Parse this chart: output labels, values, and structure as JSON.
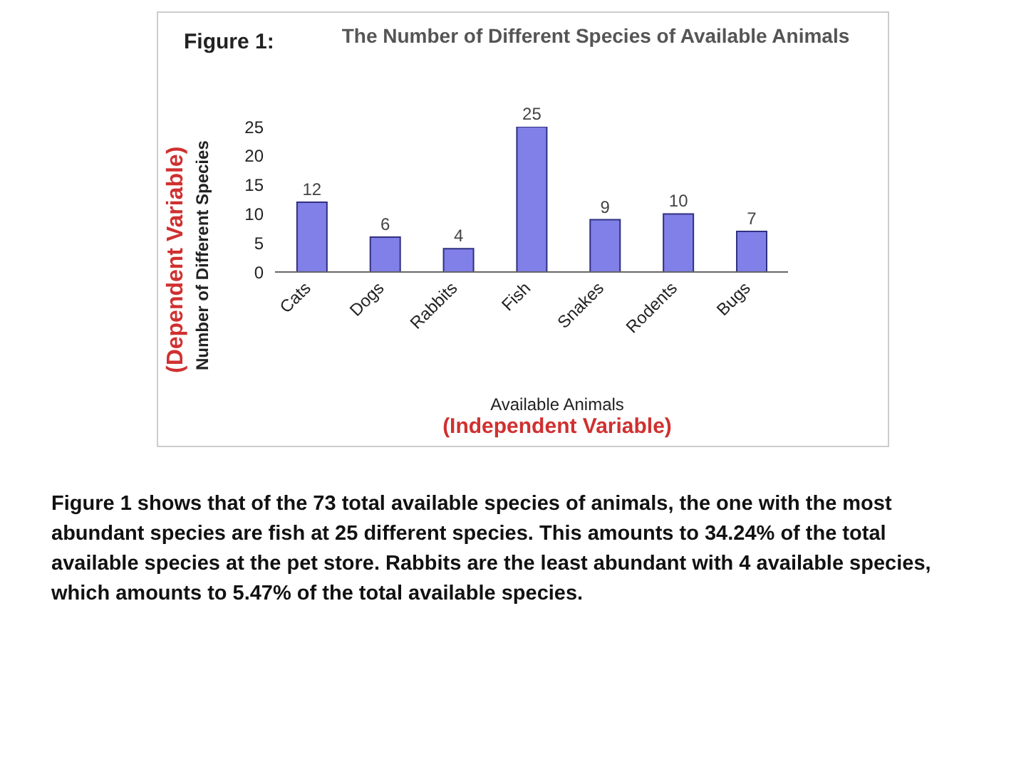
{
  "chart_data": {
    "type": "bar",
    "title": "The Number of Different Species of Available Animals",
    "categories": [
      "Cats",
      "Dogs",
      "Rabbits",
      "Fish",
      "Snakes",
      "Rodents",
      "Bugs"
    ],
    "values": [
      12,
      6,
      4,
      25,
      9,
      10,
      7
    ],
    "color": "#8080e8",
    "ylim": [
      0,
      25
    ],
    "yticks": [
      0,
      5,
      10,
      15,
      20,
      25
    ],
    "xlabel": "Available Animals",
    "ylabel": "Number of Different Species",
    "data_labels": true,
    "grid": false,
    "legend": false,
    "annotations": [
      "Figure 1:",
      "(Dependent Variable)",
      "(Independent Variable)",
      "Figure 1 shows that of the 73 total available species of animals, the one with the most abundant species are fish at 25 different species.  This amounts to 34.24% of the total available species at the pet store.  Rabbits are the least abundant with 4 available species, which amounts to 5.47% of the total available species."
    ]
  }
}
